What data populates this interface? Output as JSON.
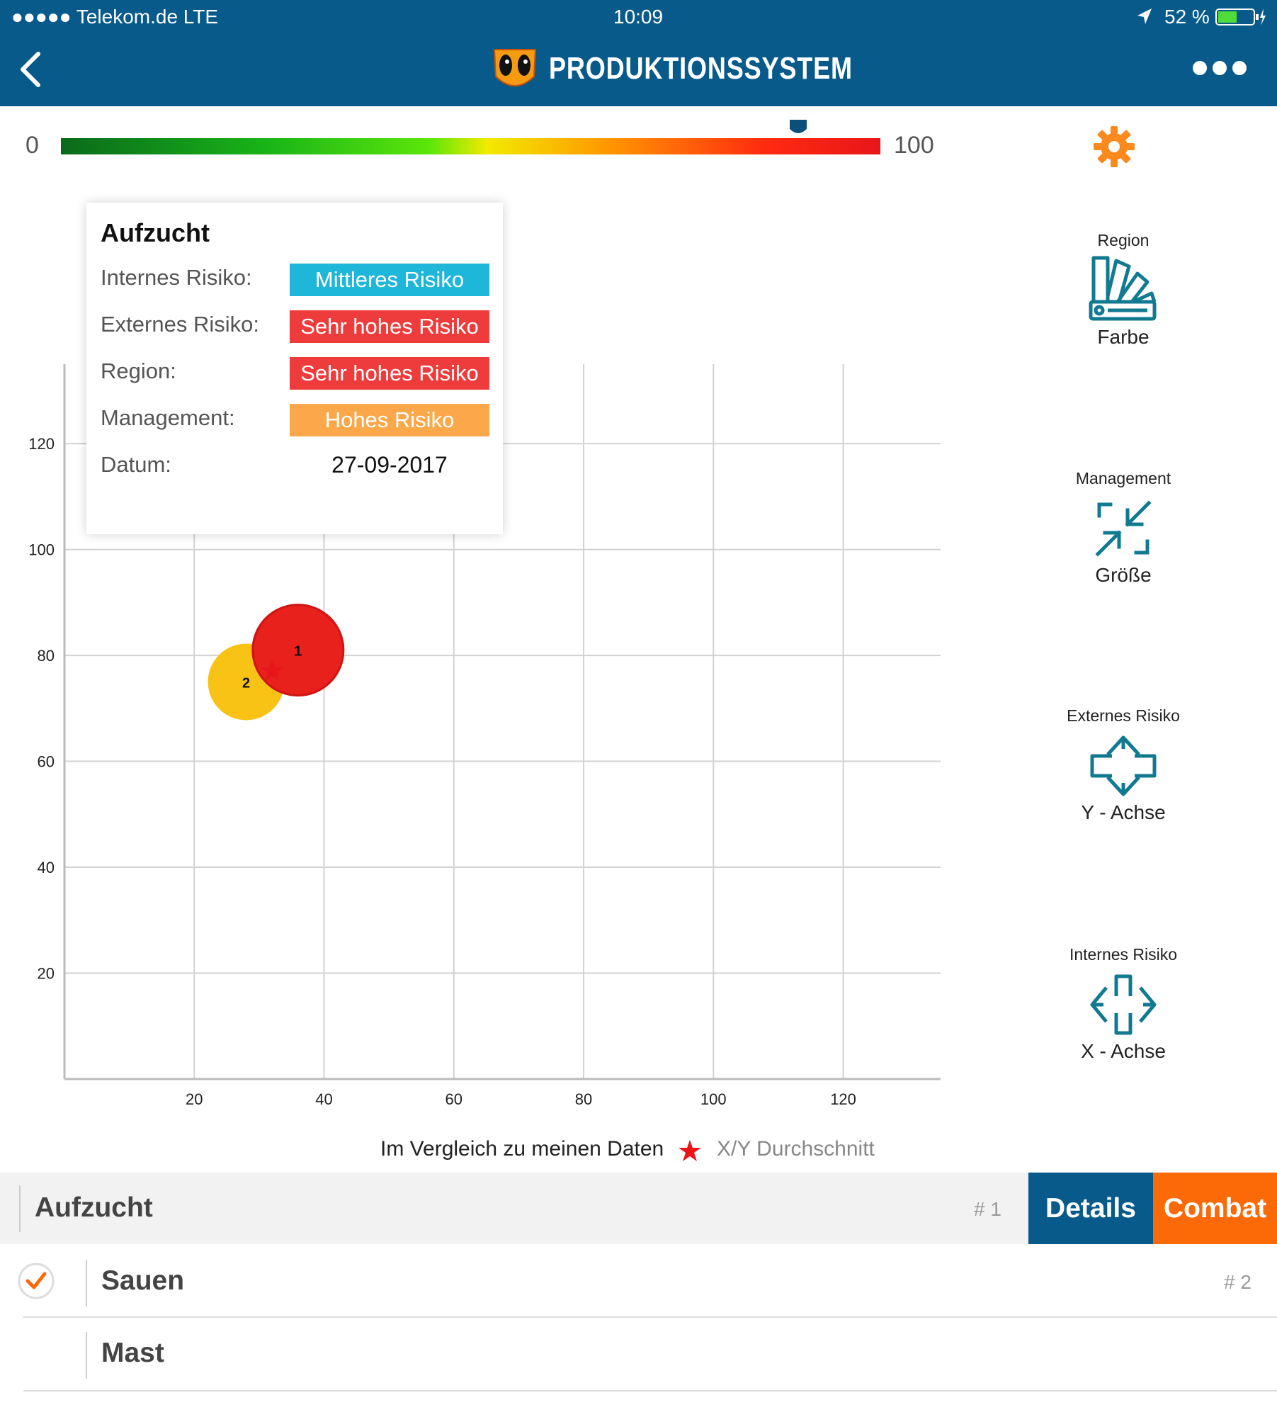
{
  "status_bar": {
    "carrier": "●●●●● Telekom.de  LTE",
    "time": "10:09",
    "battery": "52 %"
  },
  "nav": {
    "title": "PRODUKTIONSSYSTEM"
  },
  "scale": {
    "min_label": "0",
    "max_label": "100",
    "marker_value": 90
  },
  "chart_data": {
    "type": "scatter",
    "x_ticks": [
      "20",
      "40",
      "60",
      "80",
      "100",
      "120"
    ],
    "y_ticks": [
      "20",
      "40",
      "60",
      "80",
      "100",
      "120"
    ],
    "xlim": [
      0,
      135
    ],
    "ylim": [
      0,
      135
    ],
    "grid": true,
    "points": [
      {
        "label": "1",
        "x": 36,
        "y": 81,
        "color": "#e8211c"
      },
      {
        "label": "2",
        "x": 28,
        "y": 75,
        "color": "#f8c314"
      }
    ],
    "average": {
      "x": 32,
      "y": 77
    }
  },
  "tooltip": {
    "title": "Aufzucht",
    "rows": [
      {
        "label": "Internes Risiko:",
        "value": "Mittleres Risiko",
        "color": "#1eb6d9"
      },
      {
        "label": "Externes Risiko:",
        "value": "Sehr hohes Risiko",
        "color": "#ee3b3b"
      },
      {
        "label": "Region:",
        "value": "Sehr hohes Risiko",
        "color": "#ee3b3b"
      },
      {
        "label": "Management:",
        "value": "Hohes Risiko",
        "color": "#fba84a"
      }
    ],
    "date_label": "Datum:",
    "date_value": "27-09-2017"
  },
  "controls": {
    "region": {
      "top": "Region",
      "bottom": "Farbe"
    },
    "management": {
      "top": "Management",
      "bottom": "Größe"
    },
    "externes": {
      "top": "Externes Risiko",
      "bottom": "Y - Achse"
    },
    "internes": {
      "top": "Internes Risiko",
      "bottom": "X - Achse"
    }
  },
  "legend": {
    "compare": "Im Vergleich zu meinen Daten",
    "average": "X/Y Durchschnitt"
  },
  "list": [
    {
      "label": "Aufzucht",
      "index": "# 1"
    },
    {
      "label": "Sauen",
      "index": "# 2"
    },
    {
      "label": "Mast",
      "index": ""
    }
  ],
  "buttons": {
    "details": "Details",
    "combat": "Combat"
  },
  "colors": {
    "nav": "#075a8a",
    "accent": "#fb6a07",
    "teal": "#117a91"
  }
}
